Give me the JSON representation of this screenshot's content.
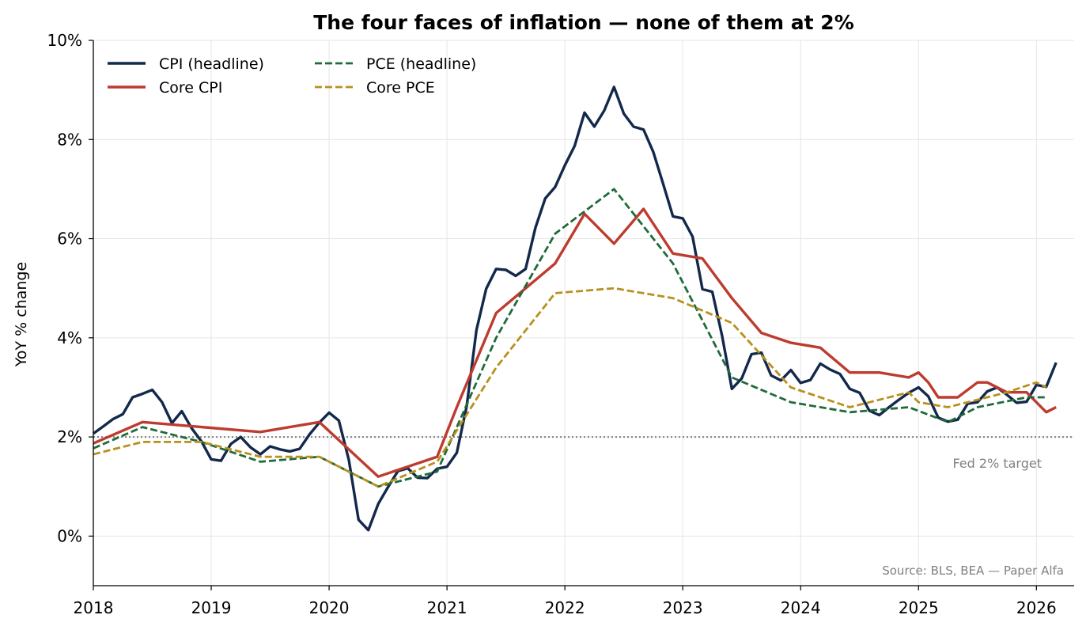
{
  "chart_data": {
    "type": "line",
    "title": "The four faces of inflation — none of them at 2%",
    "ylabel": "YoY % change",
    "xlabel": "",
    "xlim": [
      2018.0,
      2026.32
    ],
    "ylim": [
      -1,
      10
    ],
    "y_ticks": [
      0,
      2,
      4,
      6,
      8,
      10
    ],
    "y_tick_labels": [
      "0%",
      "2%",
      "4%",
      "6%",
      "8%",
      "10%"
    ],
    "x_ticks": [
      2018,
      2019,
      2020,
      2021,
      2022,
      2023,
      2024,
      2025,
      2026
    ],
    "x_tick_labels": [
      "2018",
      "2019",
      "2020",
      "2021",
      "2022",
      "2023",
      "2024",
      "2025",
      "2026"
    ],
    "grid": true,
    "legend_position": "top-left",
    "reference_line": {
      "y": 2,
      "label": "Fed 2% target",
      "color": "#808080"
    },
    "source": "Source: BLS, BEA — Paper Alfa",
    "series": [
      {
        "name": "CPI (headline)",
        "color": "#13294b",
        "style": "solid",
        "points": [
          [
            2018.0,
            2.07
          ],
          [
            2018.083,
            2.21
          ],
          [
            2018.167,
            2.36
          ],
          [
            2018.25,
            2.46
          ],
          [
            2018.333,
            2.8
          ],
          [
            2018.417,
            2.87
          ],
          [
            2018.5,
            2.95
          ],
          [
            2018.583,
            2.7
          ],
          [
            2018.667,
            2.28
          ],
          [
            2018.75,
            2.52
          ],
          [
            2018.833,
            2.18
          ],
          [
            2018.917,
            1.91
          ],
          [
            2019.0,
            1.55
          ],
          [
            2019.083,
            1.52
          ],
          [
            2019.167,
            1.86
          ],
          [
            2019.25,
            2.0
          ],
          [
            2019.333,
            1.79
          ],
          [
            2019.417,
            1.65
          ],
          [
            2019.5,
            1.81
          ],
          [
            2019.583,
            1.75
          ],
          [
            2019.667,
            1.71
          ],
          [
            2019.75,
            1.76
          ],
          [
            2019.833,
            2.05
          ],
          [
            2019.917,
            2.29
          ],
          [
            2020.0,
            2.49
          ],
          [
            2020.083,
            2.33
          ],
          [
            2020.167,
            1.54
          ],
          [
            2020.25,
            0.33
          ],
          [
            2020.333,
            0.12
          ],
          [
            2020.417,
            0.65
          ],
          [
            2020.5,
            0.99
          ],
          [
            2020.583,
            1.31
          ],
          [
            2020.667,
            1.37
          ],
          [
            2020.75,
            1.18
          ],
          [
            2020.833,
            1.17
          ],
          [
            2020.917,
            1.36
          ],
          [
            2021.0,
            1.4
          ],
          [
            2021.083,
            1.68
          ],
          [
            2021.167,
            2.62
          ],
          [
            2021.25,
            4.16
          ],
          [
            2021.333,
            4.99
          ],
          [
            2021.417,
            5.39
          ],
          [
            2021.5,
            5.37
          ],
          [
            2021.583,
            5.25
          ],
          [
            2021.667,
            5.39
          ],
          [
            2021.75,
            6.22
          ],
          [
            2021.833,
            6.81
          ],
          [
            2021.917,
            7.04
          ],
          [
            2022.0,
            7.48
          ],
          [
            2022.083,
            7.87
          ],
          [
            2022.167,
            8.54
          ],
          [
            2022.25,
            8.26
          ],
          [
            2022.333,
            8.58
          ],
          [
            2022.417,
            9.06
          ],
          [
            2022.5,
            8.52
          ],
          [
            2022.583,
            8.26
          ],
          [
            2022.667,
            8.2
          ],
          [
            2022.75,
            7.75
          ],
          [
            2022.833,
            7.11
          ],
          [
            2022.917,
            6.45
          ],
          [
            2023.0,
            6.41
          ],
          [
            2023.083,
            6.04
          ],
          [
            2023.167,
            4.98
          ],
          [
            2023.25,
            4.93
          ],
          [
            2023.333,
            4.05
          ],
          [
            2023.417,
            2.97
          ],
          [
            2023.5,
            3.18
          ],
          [
            2023.583,
            3.67
          ],
          [
            2023.667,
            3.7
          ],
          [
            2023.75,
            3.24
          ],
          [
            2023.833,
            3.14
          ],
          [
            2023.917,
            3.35
          ],
          [
            2024.0,
            3.09
          ],
          [
            2024.083,
            3.15
          ],
          [
            2024.167,
            3.48
          ],
          [
            2024.25,
            3.36
          ],
          [
            2024.333,
            3.27
          ],
          [
            2024.417,
            2.97
          ],
          [
            2024.5,
            2.89
          ],
          [
            2024.583,
            2.53
          ],
          [
            2024.667,
            2.44
          ],
          [
            2024.75,
            2.6
          ],
          [
            2024.833,
            2.75
          ],
          [
            2024.917,
            2.89
          ],
          [
            2025.0,
            3.0
          ],
          [
            2025.083,
            2.82
          ],
          [
            2025.167,
            2.39
          ],
          [
            2025.25,
            2.31
          ],
          [
            2025.333,
            2.35
          ],
          [
            2025.417,
            2.67
          ],
          [
            2025.5,
            2.7
          ],
          [
            2025.583,
            2.92
          ],
          [
            2025.667,
            3.0
          ],
          [
            2025.75,
            2.85
          ],
          [
            2025.833,
            2.69
          ],
          [
            2025.917,
            2.71
          ],
          [
            2026.0,
            3.05
          ],
          [
            2026.083,
            3.01
          ],
          [
            2026.167,
            3.5
          ]
        ]
      },
      {
        "name": "Core CPI",
        "color": "#bd3b2f",
        "style": "solid",
        "points": [
          [
            2018.0,
            1.87
          ],
          [
            2018.417,
            2.3
          ],
          [
            2019.417,
            2.1
          ],
          [
            2019.917,
            2.3
          ],
          [
            2020.417,
            1.2
          ],
          [
            2020.917,
            1.6
          ],
          [
            2021.083,
            2.6
          ],
          [
            2021.417,
            4.5
          ],
          [
            2021.917,
            5.5
          ],
          [
            2022.167,
            6.5
          ],
          [
            2022.417,
            5.9
          ],
          [
            2022.667,
            6.6
          ],
          [
            2022.917,
            5.7
          ],
          [
            2023.167,
            5.6
          ],
          [
            2023.417,
            4.8
          ],
          [
            2023.667,
            4.1
          ],
          [
            2023.917,
            3.9
          ],
          [
            2024.167,
            3.8
          ],
          [
            2024.417,
            3.3
          ],
          [
            2024.667,
            3.3
          ],
          [
            2024.917,
            3.2
          ],
          [
            2025.0,
            3.3
          ],
          [
            2025.083,
            3.1
          ],
          [
            2025.167,
            2.8
          ],
          [
            2025.333,
            2.8
          ],
          [
            2025.5,
            3.1
          ],
          [
            2025.583,
            3.1
          ],
          [
            2025.75,
            2.9
          ],
          [
            2025.917,
            2.9
          ],
          [
            2026.083,
            2.5
          ],
          [
            2026.167,
            2.6
          ]
        ]
      },
      {
        "name": "PCE (headline)",
        "color": "#1f6b3a",
        "style": "dashed",
        "points": [
          [
            2018.0,
            1.77
          ],
          [
            2018.417,
            2.2
          ],
          [
            2018.917,
            1.9
          ],
          [
            2019.417,
            1.5
          ],
          [
            2019.917,
            1.6
          ],
          [
            2020.417,
            1.0
          ],
          [
            2020.917,
            1.3
          ],
          [
            2021.417,
            4.0
          ],
          [
            2021.917,
            6.1
          ],
          [
            2022.417,
            7.0
          ],
          [
            2022.917,
            5.5
          ],
          [
            2023.417,
            3.2
          ],
          [
            2023.917,
            2.7
          ],
          [
            2024.417,
            2.5
          ],
          [
            2024.917,
            2.6
          ],
          [
            2025.25,
            2.3
          ],
          [
            2025.5,
            2.6
          ],
          [
            2025.917,
            2.8
          ],
          [
            2026.083,
            2.8
          ]
        ]
      },
      {
        "name": "Core PCE",
        "color": "#b8901d",
        "style": "dashed",
        "points": [
          [
            2018.0,
            1.65
          ],
          [
            2018.417,
            1.9
          ],
          [
            2018.917,
            1.9
          ],
          [
            2019.417,
            1.6
          ],
          [
            2019.917,
            1.6
          ],
          [
            2020.417,
            1.0
          ],
          [
            2020.917,
            1.5
          ],
          [
            2021.417,
            3.4
          ],
          [
            2021.917,
            4.9
          ],
          [
            2022.417,
            5.0
          ],
          [
            2022.917,
            4.8
          ],
          [
            2023.417,
            4.3
          ],
          [
            2023.917,
            3.0
          ],
          [
            2024.417,
            2.6
          ],
          [
            2024.917,
            2.9
          ],
          [
            2025.0,
            2.7
          ],
          [
            2025.25,
            2.6
          ],
          [
            2025.75,
            2.9
          ],
          [
            2026.0,
            3.1
          ],
          [
            2026.083,
            3.0
          ]
        ]
      }
    ]
  }
}
